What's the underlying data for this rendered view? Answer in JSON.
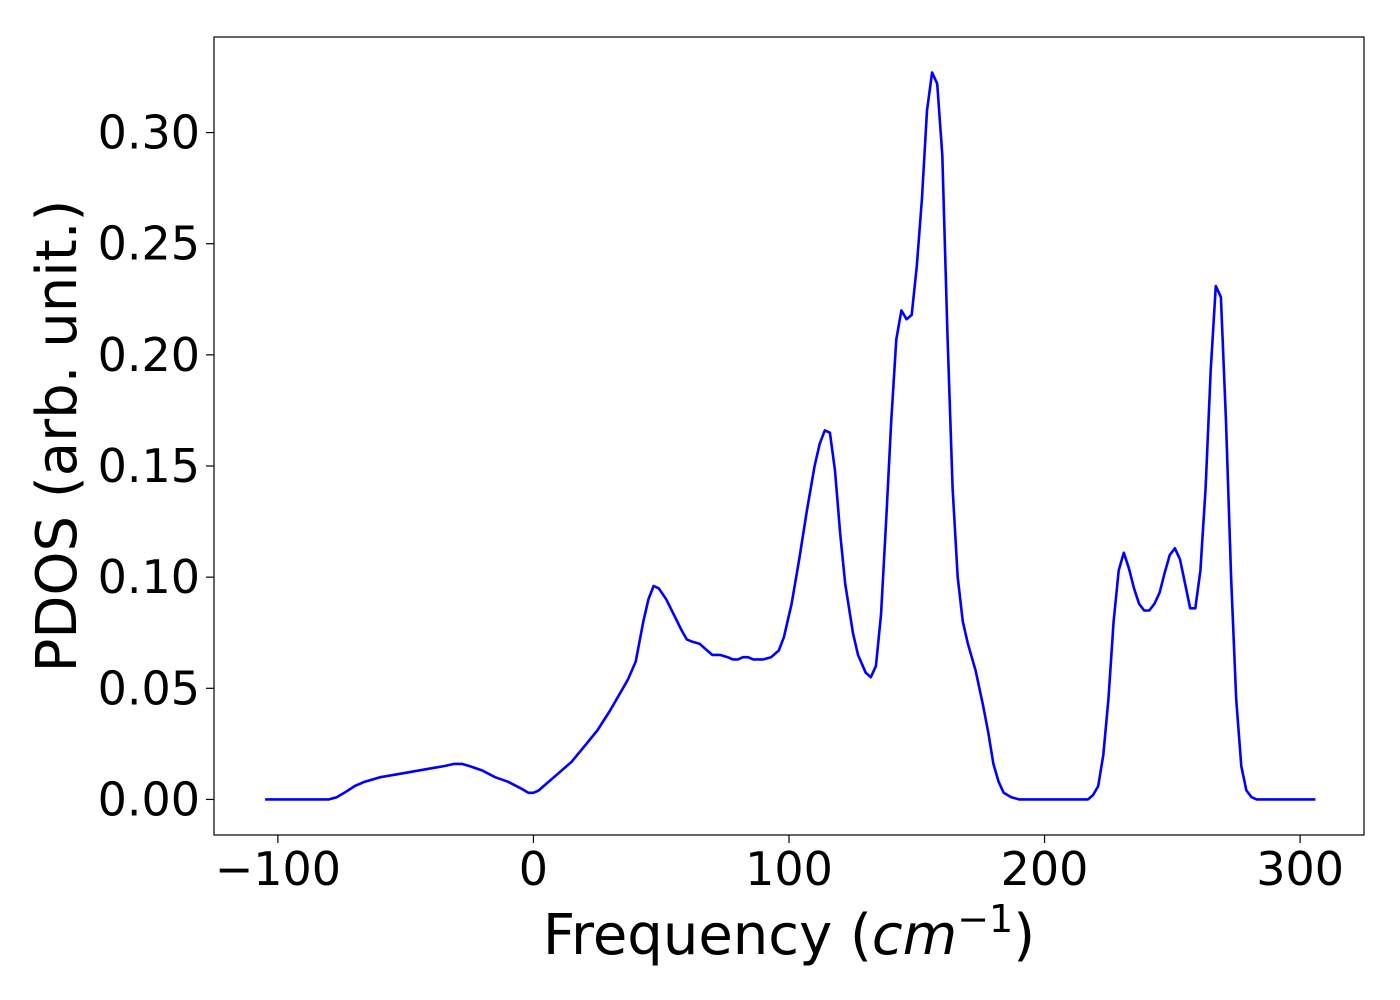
{
  "chart_data": {
    "type": "line",
    "xlabel": "Frequency (cm⁻¹)",
    "xlabel_parts": {
      "pre": "Frequency (",
      "italic": "cm",
      "sup": "−1",
      "post": ")"
    },
    "ylabel": "PDOS (arb. unit.)",
    "xlim": [
      -125,
      325
    ],
    "ylim": [
      -0.016,
      0.343
    ],
    "xticks": [
      -100,
      0,
      100,
      200,
      300
    ],
    "xtick_labels": [
      "−100",
      "0",
      "100",
      "200",
      "300"
    ],
    "yticks": [
      0.0,
      0.05,
      0.1,
      0.15,
      0.2,
      0.25,
      0.3
    ],
    "ytick_labels": [
      "0.00",
      "0.05",
      "0.10",
      "0.15",
      "0.20",
      "0.25",
      "0.30"
    ],
    "grid": false,
    "series": [
      {
        "color": "#0000ff",
        "x": [
          -105,
          -85,
          -80,
          -77,
          -74,
          -70,
          -66,
          -60,
          -50,
          -40,
          -35,
          -31,
          -28,
          -25,
          -20,
          -15,
          -10,
          -5,
          -2,
          0,
          2,
          5,
          10,
          15,
          20,
          25,
          30,
          35,
          37,
          40,
          43,
          45,
          47,
          49,
          52,
          55,
          58,
          60,
          62,
          65,
          68,
          70,
          73,
          76,
          78,
          80,
          82,
          84,
          86,
          88,
          90,
          93,
          96,
          98,
          101,
          104,
          107,
          110,
          112,
          114,
          116,
          118,
          120,
          122,
          125,
          127,
          130,
          132,
          134,
          136,
          138,
          140,
          142,
          144,
          146,
          148,
          150,
          152,
          154,
          156,
          158,
          160,
          162,
          164,
          166,
          168,
          170,
          173,
          176,
          178,
          180,
          182,
          184,
          187,
          190,
          195,
          200,
          205,
          210,
          215,
          217,
          219,
          221,
          223,
          225,
          227,
          229,
          231,
          233,
          235,
          237,
          239,
          241,
          243,
          245,
          247,
          249,
          251,
          253,
          255,
          257,
          259,
          261,
          263,
          265,
          267,
          269,
          271,
          273,
          275,
          277,
          279,
          281,
          283,
          290,
          300,
          306
        ],
        "y": [
          0.0,
          0.0,
          0.0,
          0.001,
          0.003,
          0.006,
          0.008,
          0.01,
          0.012,
          0.014,
          0.015,
          0.016,
          0.016,
          0.015,
          0.013,
          0.01,
          0.008,
          0.005,
          0.003,
          0.003,
          0.004,
          0.007,
          0.012,
          0.017,
          0.024,
          0.031,
          0.04,
          0.05,
          0.054,
          0.062,
          0.08,
          0.09,
          0.096,
          0.095,
          0.09,
          0.083,
          0.076,
          0.072,
          0.071,
          0.07,
          0.067,
          0.065,
          0.065,
          0.064,
          0.063,
          0.063,
          0.064,
          0.064,
          0.063,
          0.063,
          0.063,
          0.064,
          0.067,
          0.073,
          0.088,
          0.108,
          0.13,
          0.15,
          0.16,
          0.166,
          0.165,
          0.148,
          0.12,
          0.097,
          0.075,
          0.065,
          0.057,
          0.055,
          0.06,
          0.083,
          0.125,
          0.17,
          0.207,
          0.22,
          0.216,
          0.218,
          0.24,
          0.27,
          0.31,
          0.327,
          0.322,
          0.29,
          0.21,
          0.14,
          0.1,
          0.08,
          0.07,
          0.058,
          0.042,
          0.03,
          0.016,
          0.008,
          0.003,
          0.001,
          0.0,
          0.0,
          0.0,
          0.0,
          0.0,
          0.0,
          0.0,
          0.002,
          0.006,
          0.02,
          0.045,
          0.08,
          0.103,
          0.111,
          0.104,
          0.095,
          0.088,
          0.085,
          0.085,
          0.088,
          0.093,
          0.102,
          0.11,
          0.113,
          0.108,
          0.097,
          0.086,
          0.086,
          0.103,
          0.14,
          0.193,
          0.231,
          0.226,
          0.17,
          0.1,
          0.045,
          0.015,
          0.004,
          0.001,
          0.0,
          0.0,
          0.0,
          0.0
        ]
      }
    ]
  }
}
